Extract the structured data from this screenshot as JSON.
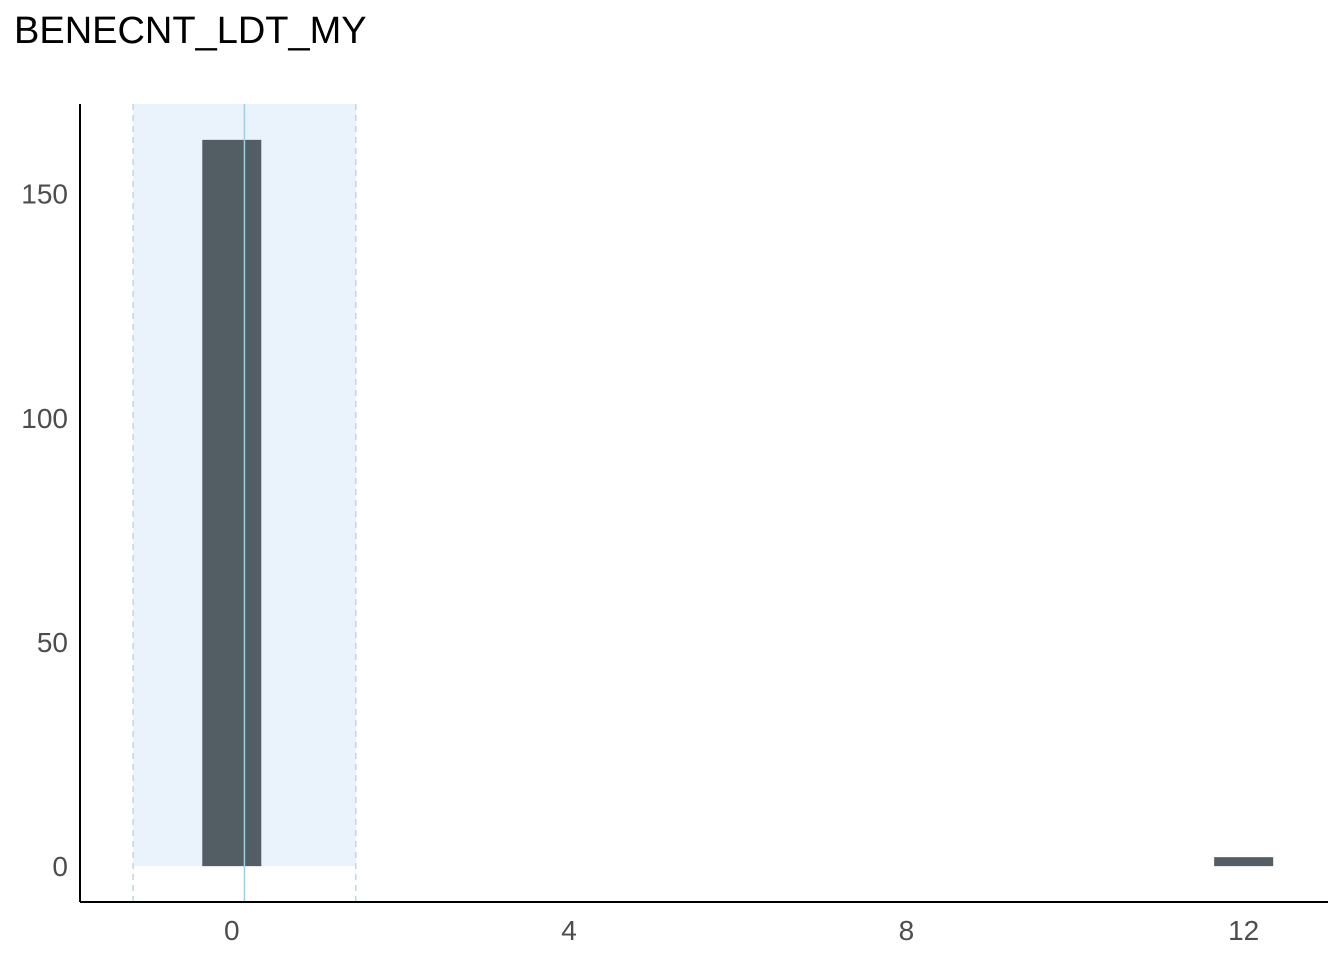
{
  "chart_data": {
    "type": "bar",
    "title": "BENECNT_LDT_MY",
    "xlabel": "",
    "ylabel": "",
    "x_ticks": [
      0,
      4,
      8,
      12
    ],
    "y_ticks": [
      0,
      50,
      100,
      150
    ],
    "xlim": [
      -1.8,
      13.0
    ],
    "ylim": [
      -8,
      170
    ],
    "bins": [
      {
        "x": 0,
        "count": 162
      },
      {
        "x": 12,
        "count": 2
      }
    ],
    "mean": 0.15,
    "band": [
      -1.17,
      1.47
    ],
    "grid": false,
    "colors": {
      "bar": "#535d64",
      "band_fill": "#eaf3fc",
      "band_edge": "#b9d8e8",
      "mean_line": "#9ccfe3",
      "axis": "#000000"
    }
  }
}
